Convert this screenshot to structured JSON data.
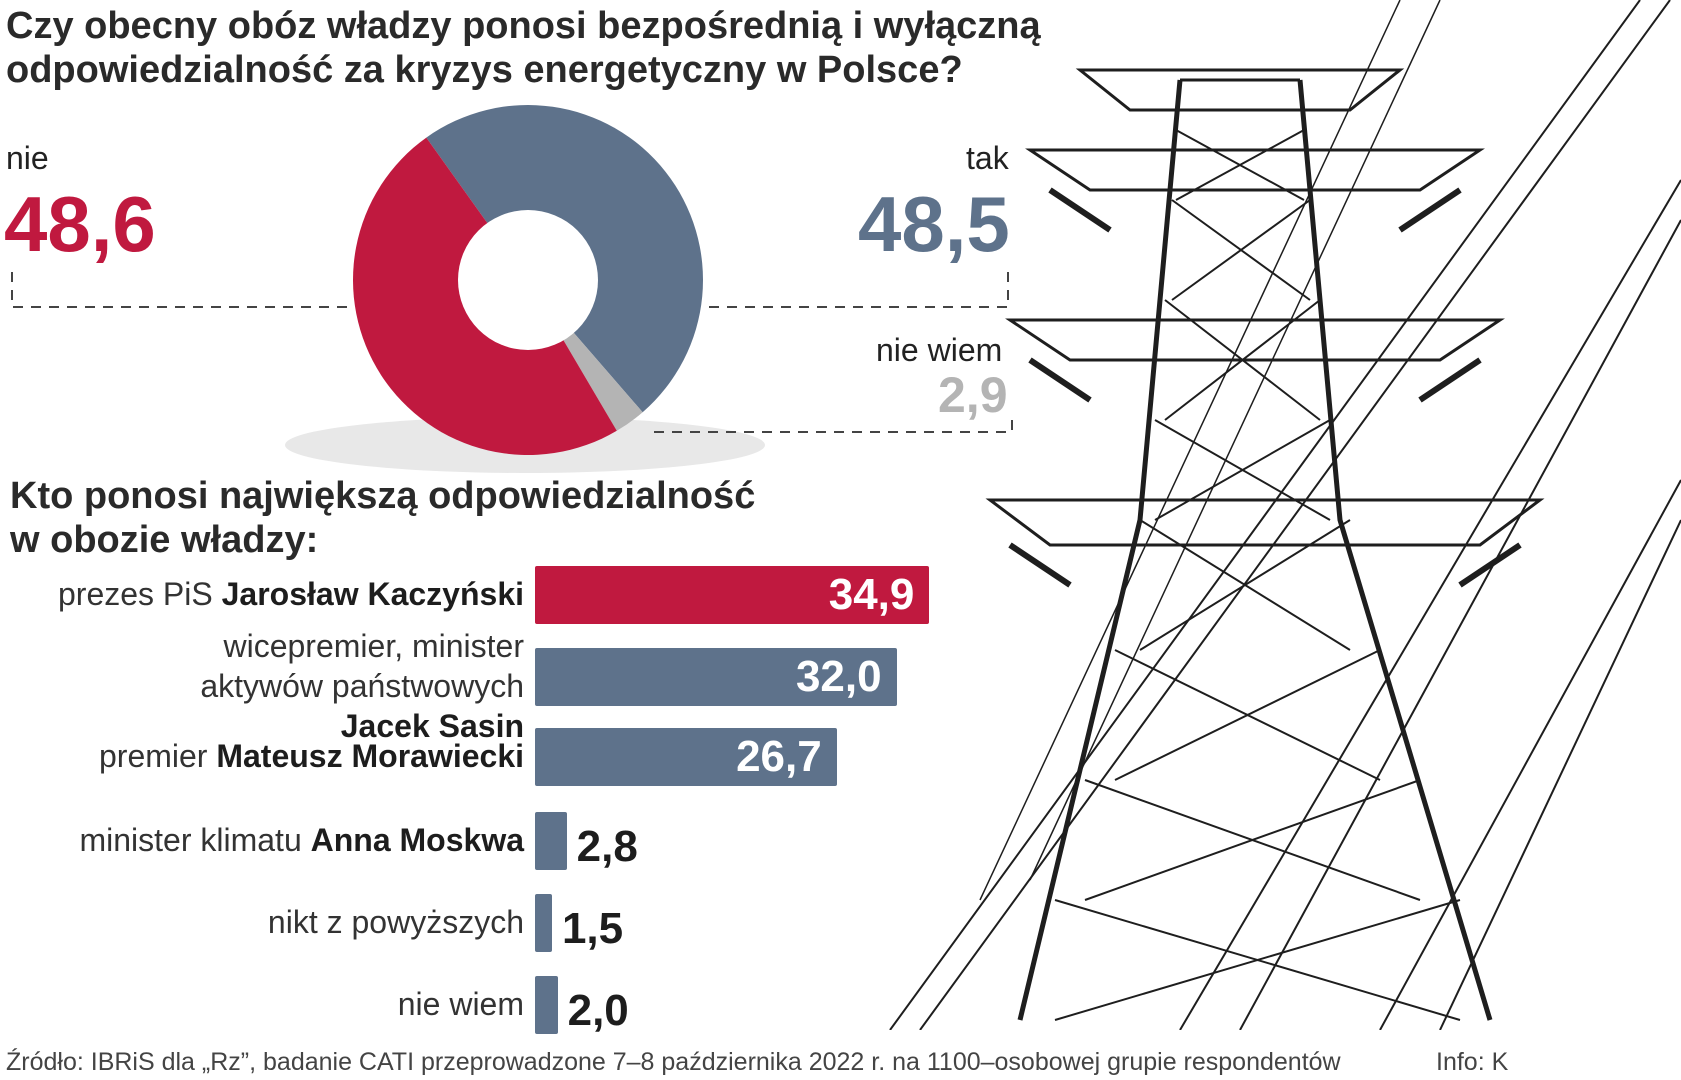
{
  "title": "Czy obecny obóz władzy ponosi bezpośrednią i wyłączną odpowiedzialność za kryzys energetyczny w Polsce?",
  "pie": {
    "nie_label": "nie",
    "nie_value": "48,6",
    "tak_label": "tak",
    "tak_value": "48,5",
    "niewiem_label": "nie wiem",
    "niewiem_value": "2,9"
  },
  "subtitle": "Kto ponosi największą odpowiedzialność w obozie władzy:",
  "bars": [
    {
      "prefix": "prezes PiS ",
      "name": "Jarosław Kaczyński",
      "value": "34,9"
    },
    {
      "prefix": "wicepremier, minister aktywów państwowych ",
      "name": "Jacek Sasin",
      "value": "32,0"
    },
    {
      "prefix": "premier ",
      "name": "Mateusz Morawiecki",
      "value": "26,7"
    },
    {
      "prefix": "minister klimatu ",
      "name": "Anna Moskwa",
      "value": "2,8"
    },
    {
      "prefix": "nikt z powyższych",
      "name": "",
      "value": "1,5"
    },
    {
      "prefix": "nie wiem",
      "name": "",
      "value": "2,0"
    }
  ],
  "source": "Źródło: IBRiS dla „Rz”, badanie CATI przeprowadzone 7–8 października 2022 r. na 1100–osobowej grupie respondentów",
  "info": "Info: K",
  "colors": {
    "red": "#c0193f",
    "blue": "#5e728b",
    "grey": "#b4b4b4"
  },
  "chart_data": [
    {
      "type": "pie",
      "title": "Czy obecny obóz władzy ponosi bezpośrednią i wyłączną odpowiedzialność za kryzys energetyczny w Polsce?",
      "categories": [
        "nie",
        "tak",
        "nie wiem"
      ],
      "values": [
        48.6,
        48.5,
        2.9
      ],
      "colors": [
        "#c0193f",
        "#5e728b",
        "#b4b4b4"
      ]
    },
    {
      "type": "bar",
      "title": "Kto ponosi największą odpowiedzialność w obozie władzy:",
      "categories": [
        "prezes PiS Jarosław Kaczyński",
        "wicepremier, minister aktywów państwowych Jacek Sasin",
        "premier Mateusz Morawiecki",
        "minister klimatu Anna Moskwa",
        "nikt z powyższych",
        "nie wiem"
      ],
      "values": [
        34.9,
        32.0,
        26.7,
        2.8,
        1.5,
        2.0
      ],
      "colors": [
        "#c0193f",
        "#5e728b",
        "#5e728b",
        "#5e728b",
        "#5e728b",
        "#5e728b"
      ]
    }
  ]
}
